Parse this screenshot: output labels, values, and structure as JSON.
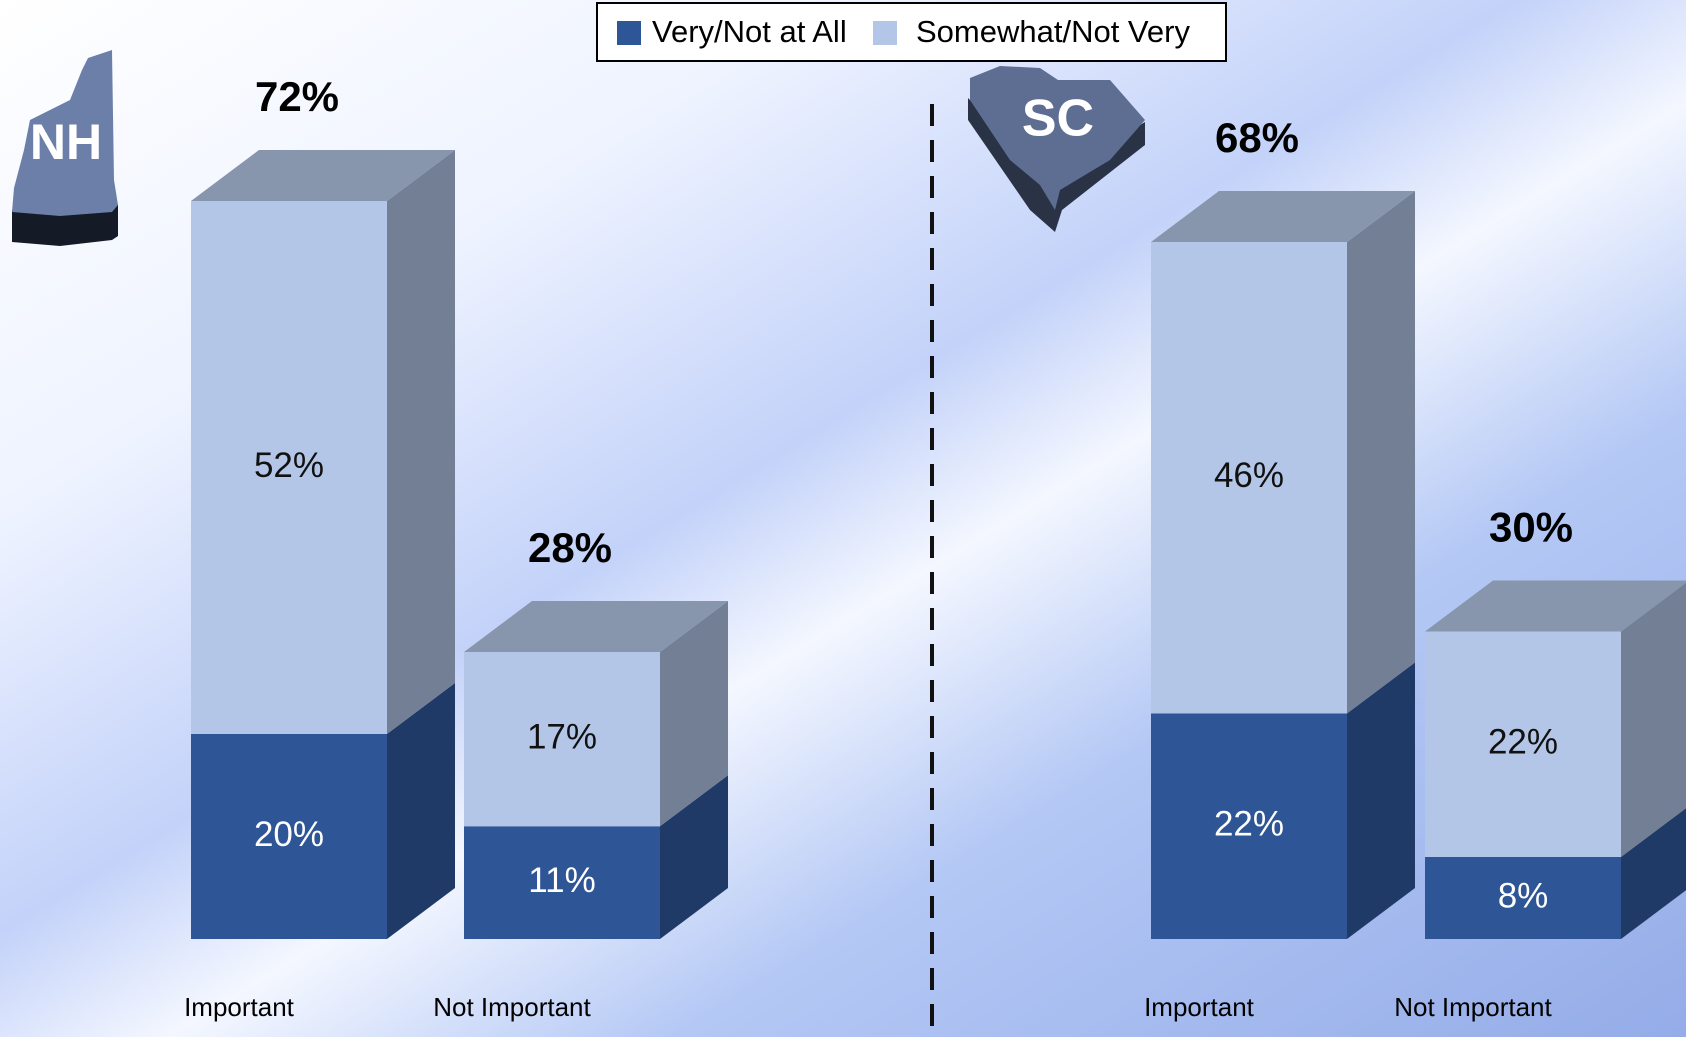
{
  "chart_data": [
    {
      "type": "bar",
      "stacked": true,
      "state": "NH",
      "categories": [
        "Important",
        "Not Important"
      ],
      "series": [
        {
          "name": "Very/Not at All",
          "color": "#2e5596",
          "values": [
            20,
            11
          ],
          "value_labels": [
            "20%",
            "11%"
          ]
        },
        {
          "name": "Somewhat/Not Very",
          "color": "#b4c6e7",
          "values": [
            52,
            17
          ],
          "value_labels": [
            "52%",
            "17%"
          ]
        }
      ],
      "totals": [
        72,
        28
      ],
      "total_labels": [
        "72%",
        "28%"
      ]
    },
    {
      "type": "bar",
      "stacked": true,
      "state": "SC",
      "categories": [
        "Important",
        "Not Important"
      ],
      "series": [
        {
          "name": "Very/Not at All",
          "color": "#2e5596",
          "values": [
            22,
            8
          ],
          "value_labels": [
            "22%",
            "8%"
          ]
        },
        {
          "name": "Somewhat/Not Very",
          "color": "#b4c6e7",
          "values": [
            46,
            22
          ],
          "value_labels": [
            "46%",
            "22%"
          ]
        }
      ],
      "totals": [
        68,
        30
      ],
      "total_labels": [
        "68%",
        "30%"
      ]
    }
  ]
}
